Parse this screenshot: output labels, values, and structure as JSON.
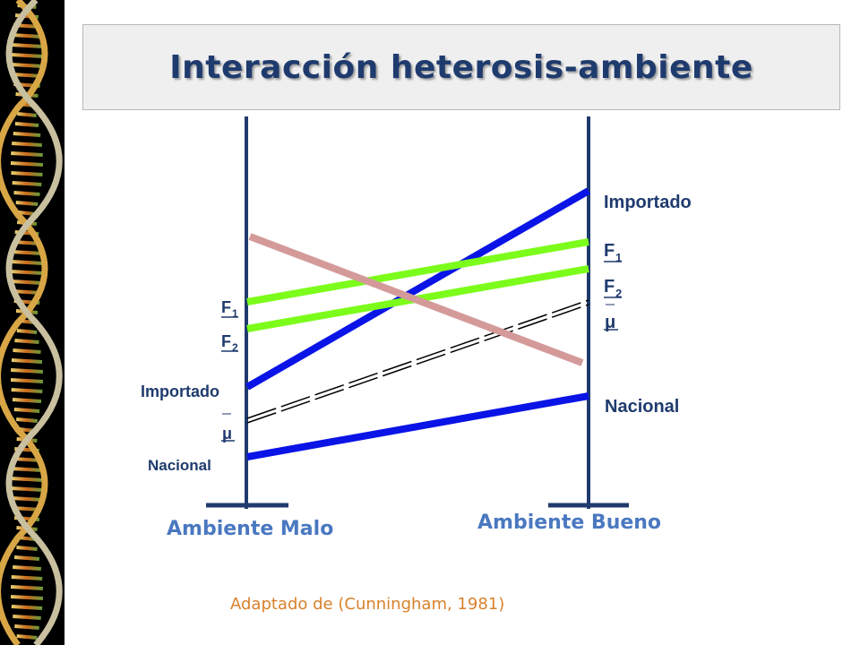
{
  "title": "Interacción heterosis-ambiente",
  "environments": {
    "left": "Ambiente Malo",
    "right": "Ambiente Bueno"
  },
  "labels": {
    "importado": "Importado",
    "f1_letter": "F",
    "f1_sub": "1",
    "f2_letter": "F",
    "f2_sub": "2",
    "mu": "μ",
    "nacional": "Nacional"
  },
  "source": "Adaptado de (Cunningham, 1981)",
  "colors": {
    "axis": "#1f3b6e",
    "parental_lines": "#0a14e6",
    "hybrid_lines": "#7cfc1a",
    "heterosis_line": "#d49a9a",
    "mean_line": "#000000"
  }
}
